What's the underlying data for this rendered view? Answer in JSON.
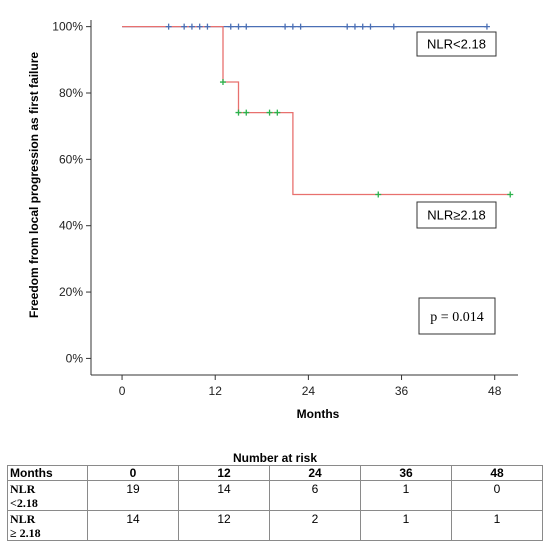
{
  "chart_data": {
    "type": "line",
    "ylabel": "Freedom from local progression as first failure",
    "xlabel": "Months",
    "xticks": [
      0,
      12,
      24,
      36,
      48
    ],
    "yticks": [
      "0%",
      "20%",
      "40%",
      "60%",
      "80%",
      "100%"
    ],
    "ytick_values": [
      0,
      20,
      40,
      60,
      80,
      100
    ],
    "xlim": [
      -4,
      51
    ],
    "ylim": [
      -5,
      102
    ],
    "series": [
      {
        "name": "NLR<2.18",
        "color": "#4a6fb5",
        "step_x": [
          0,
          47
        ],
        "step_y": [
          100,
          100
        ],
        "censored_x": [
          6,
          8,
          9,
          10,
          11,
          14,
          15,
          16,
          21,
          22,
          23,
          29,
          30,
          31,
          32,
          35,
          47
        ],
        "censored_y": [
          100,
          100,
          100,
          100,
          100,
          100,
          100,
          100,
          100,
          100,
          100,
          100,
          100,
          100,
          100,
          100,
          100
        ]
      },
      {
        "name": "NLR≥2.18",
        "color": "#e8706e",
        "censor_color": "#2bb24c",
        "step_x": [
          0,
          13,
          13,
          15,
          15,
          22,
          22,
          50
        ],
        "step_y": [
          100,
          100,
          83.3,
          83.3,
          74.1,
          74.1,
          49.4,
          49.4
        ],
        "censored_x": [
          13,
          15,
          16,
          19,
          20,
          33,
          50
        ],
        "censored_y": [
          83.3,
          74.1,
          74.1,
          74.1,
          74.1,
          49.4,
          49.4
        ]
      }
    ],
    "legend_labels": [
      "NLR<2.18",
      "NLR≥2.18"
    ],
    "annotation": "p = 0.014",
    "grid": false
  },
  "risk_table": {
    "title": "Number at risk",
    "header": [
      "Months",
      "0",
      "12",
      "24",
      "36",
      "48"
    ],
    "rows": [
      {
        "label_line1": "NLR",
        "label_line2": "<2.18",
        "values": [
          "19",
          "14",
          "6",
          "1",
          "0"
        ]
      },
      {
        "label_line1": "NLR",
        "label_line2": "≥ 2.18",
        "values": [
          "14",
          "12",
          "2",
          "1",
          "1"
        ]
      }
    ]
  }
}
